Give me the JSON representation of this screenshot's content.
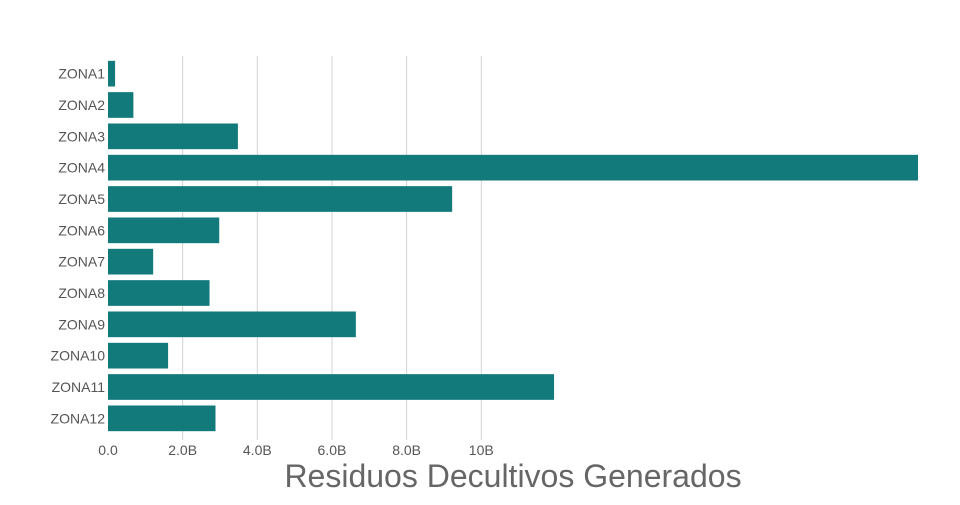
{
  "chart_data": {
    "type": "bar",
    "orientation": "horizontal",
    "title": "",
    "xlabel": "Residuos Decultivos Generados",
    "ylabel": "",
    "categories": [
      "ZONA1",
      "ZONA2",
      "ZONA3",
      "ZONA4",
      "ZONA5",
      "ZONA6",
      "ZONA7",
      "ZONA8",
      "ZONA9",
      "ZONA10",
      "ZONA11",
      "ZONA12"
    ],
    "values": [
      190000000,
      680000000,
      3480000000,
      21700000000,
      9220000000,
      2980000000,
      1210000000,
      2720000000,
      6640000000,
      1610000000,
      11950000000,
      2880000000
    ],
    "xlim": [
      0,
      21700000000
    ],
    "x_ticks": [
      0,
      2000000000,
      4000000000,
      6000000000,
      8000000000,
      10000000000
    ],
    "x_tick_labels": [
      "0.0",
      "2.0B",
      "4.0B",
      "6.0B",
      "8.0B",
      "10B"
    ],
    "grid": "vertical",
    "legend": "none",
    "bar_color": "#137a7c",
    "grid_color": "#d3d3d3"
  }
}
